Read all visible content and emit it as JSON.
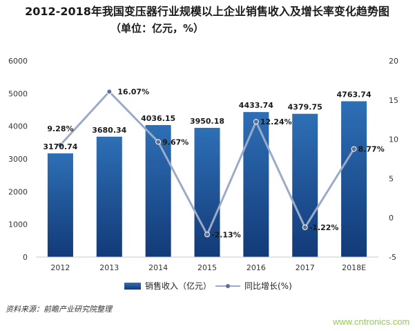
{
  "chart_data": {
    "type": "bar",
    "title": "2012-2018年我国变压器行业规模以上企业销售收入及增长率变化趋势图",
    "subtitle": "（单位：亿元，%）",
    "categories": [
      "2012",
      "2013",
      "2014",
      "2015",
      "2016",
      "2017",
      "2018E"
    ],
    "series": [
      {
        "name": "销售收入（亿元）",
        "type": "bar",
        "axis": "left",
        "values": [
          3170.74,
          3680.34,
          4036.15,
          3950.18,
          4433.74,
          4379.75,
          4763.74
        ],
        "labels": [
          "3170.74",
          "3680.34",
          "4036.15",
          "3950.18",
          "4433.74",
          "4379.75",
          "4763.74"
        ]
      },
      {
        "name": "同比增长(%)",
        "type": "line",
        "axis": "right",
        "values": [
          9.28,
          16.07,
          9.67,
          -2.13,
          12.24,
          -1.22,
          8.77
        ],
        "labels": [
          "9.28%",
          "16.07%",
          "9.67%",
          "-2.13%",
          "12.24%",
          "-1.22%",
          "8.77%"
        ]
      }
    ],
    "y_left": {
      "ylim": [
        0,
        6000
      ],
      "ticks": [
        "0",
        "1000",
        "2000",
        "3000",
        "4000",
        "5000",
        "6000"
      ]
    },
    "y_right": {
      "ylim": [
        -5,
        20
      ],
      "ticks": [
        "-5",
        "0",
        "5",
        "10",
        "15",
        "20"
      ]
    },
    "grid": false,
    "legend": "bottom",
    "colors": {
      "bar_top": "#2e6fb5",
      "bar_bottom": "#123a78",
      "line": "#9aaac8",
      "marker": "#5b6f98"
    }
  },
  "source": "资料来源：前瞻产业研究院整理",
  "watermark": "www.cntronics.com"
}
